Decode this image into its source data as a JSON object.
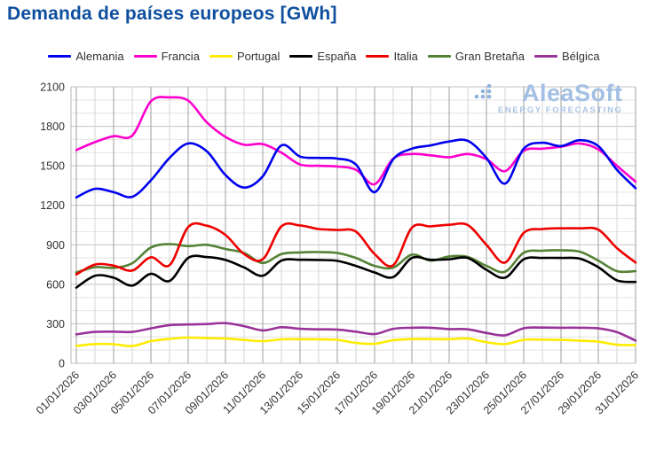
{
  "header": {
    "title": "Demanda de países europeos [GWh]"
  },
  "watermark": {
    "brand": "AleaSoft",
    "tagline": "ENERGY FORECASTING",
    "logo_icon": "dots-triangle-logo",
    "color": "#a3c0e4"
  },
  "chart_data": {
    "type": "line",
    "title": "Demanda de países europeos [GWh]",
    "unit": "GWh",
    "xlabel": "",
    "ylabel": "",
    "ylim": [
      0,
      2100
    ],
    "y_tick_step": 300,
    "y_minor_step": 100,
    "grid": true,
    "legend_position": "top",
    "y_tick_labels": [
      "0",
      "300",
      "600",
      "900",
      "1200",
      "1500",
      "1800",
      "2100"
    ],
    "x_tick_labels": [
      "01/01/2026",
      "03/01/2026",
      "05/01/2026",
      "07/01/2026",
      "09/01/2026",
      "11/01/2026",
      "13/01/2026",
      "15/01/2026",
      "17/01/2026",
      "19/01/2026",
      "21/01/2026",
      "23/01/2026",
      "25/01/2026",
      "27/01/2026",
      "29/01/2026",
      "31/01/2026"
    ],
    "x_days": 31,
    "series": [
      {
        "name": "Alemania",
        "color": "#0000ee",
        "values": [
          1260,
          1325,
          1300,
          1265,
          1390,
          1560,
          1670,
          1610,
          1430,
          1335,
          1420,
          1655,
          1570,
          1560,
          1555,
          1510,
          1300,
          1550,
          1630,
          1655,
          1685,
          1690,
          1560,
          1365,
          1630,
          1675,
          1650,
          1695,
          1650,
          1470,
          1330
        ]
      },
      {
        "name": "Francia",
        "color": "#ff00cc",
        "values": [
          1620,
          1680,
          1725,
          1730,
          1990,
          2020,
          1995,
          1830,
          1720,
          1660,
          1665,
          1600,
          1510,
          1500,
          1495,
          1470,
          1360,
          1555,
          1590,
          1580,
          1565,
          1590,
          1550,
          1460,
          1615,
          1630,
          1645,
          1670,
          1625,
          1500,
          1380
        ]
      },
      {
        "name": "Portugal",
        "color": "#ffeb00",
        "values": [
          132,
          146,
          145,
          131,
          168,
          185,
          195,
          191,
          188,
          178,
          168,
          182,
          183,
          182,
          178,
          155,
          148,
          176,
          184,
          184,
          183,
          188,
          160,
          146,
          178,
          180,
          178,
          172,
          164,
          141,
          138
        ]
      },
      {
        "name": "España",
        "color": "#000000",
        "values": [
          575,
          665,
          650,
          590,
          680,
          625,
          800,
          807,
          785,
          728,
          665,
          780,
          786,
          785,
          778,
          740,
          690,
          655,
          800,
          786,
          790,
          800,
          710,
          650,
          790,
          800,
          800,
          795,
          730,
          630,
          618
        ]
      },
      {
        "name": "Italia",
        "color": "#ee0000",
        "values": [
          675,
          750,
          742,
          705,
          805,
          745,
          1035,
          1045,
          975,
          830,
          790,
          1040,
          1047,
          1020,
          1013,
          1000,
          830,
          745,
          1030,
          1040,
          1052,
          1050,
          900,
          765,
          990,
          1020,
          1025,
          1025,
          1015,
          875,
          765
        ]
      },
      {
        "name": "Gran Bretaña",
        "color": "#548235",
        "values": [
          690,
          730,
          725,
          760,
          880,
          905,
          890,
          900,
          868,
          838,
          762,
          830,
          842,
          845,
          838,
          800,
          740,
          726,
          825,
          780,
          812,
          808,
          740,
          696,
          840,
          855,
          858,
          848,
          780,
          700,
          700
        ]
      },
      {
        "name": "Bélgica",
        "color": "#993399",
        "values": [
          220,
          238,
          240,
          238,
          265,
          290,
          295,
          298,
          305,
          282,
          250,
          274,
          262,
          258,
          256,
          240,
          222,
          262,
          270,
          270,
          260,
          258,
          230,
          213,
          266,
          271,
          270,
          270,
          265,
          236,
          172
        ]
      }
    ]
  }
}
